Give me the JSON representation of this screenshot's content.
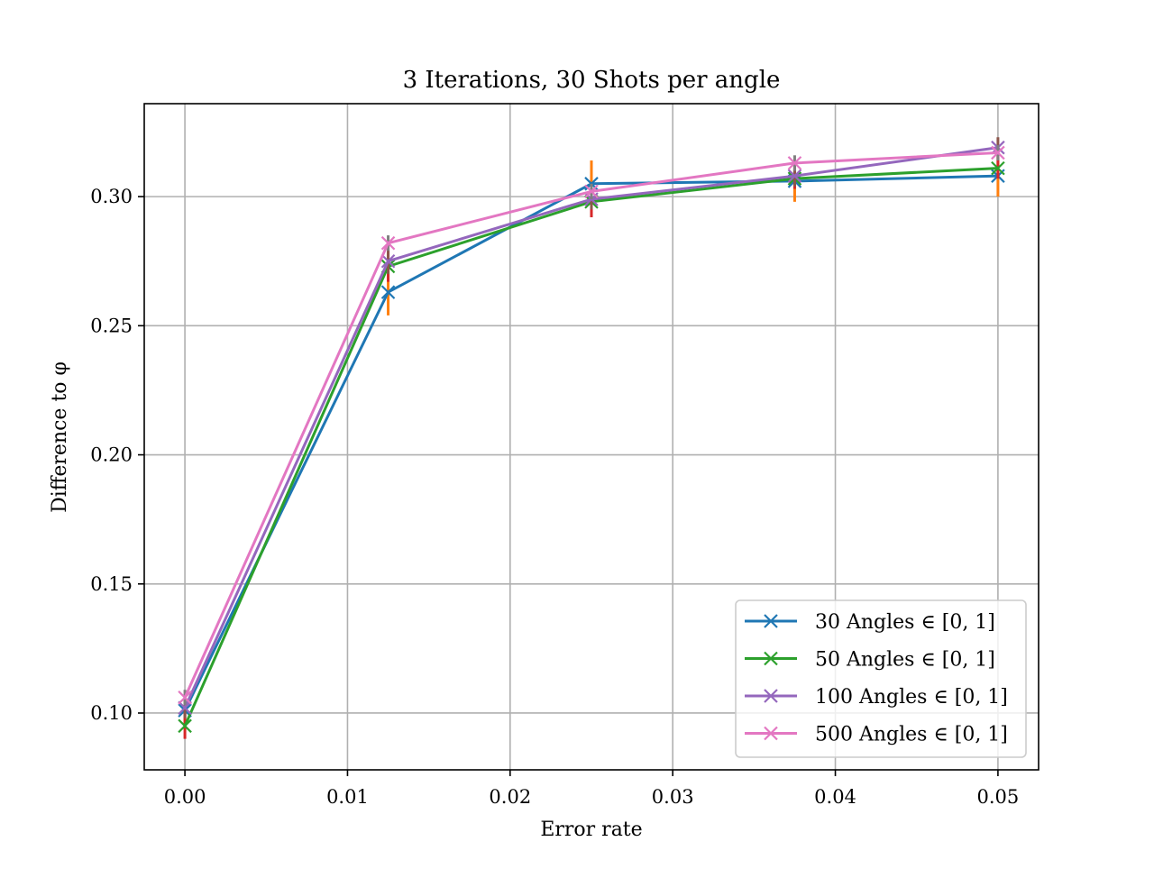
{
  "chart_data": {
    "type": "line",
    "title": "3 Iterations, 30 Shots per angle",
    "xlabel": "Error rate",
    "ylabel": "Difference to φ",
    "x": [
      0.0,
      0.0125,
      0.025,
      0.0375,
      0.05
    ],
    "xlim": [
      -0.0025,
      0.0525
    ],
    "ylim": [
      0.078,
      0.336
    ],
    "xticks": [
      0.0,
      0.01,
      0.02,
      0.03,
      0.04,
      0.05
    ],
    "xtick_labels": [
      "0.00",
      "0.01",
      "0.02",
      "0.03",
      "0.04",
      "0.05"
    ],
    "yticks": [
      0.1,
      0.15,
      0.2,
      0.25,
      0.3
    ],
    "ytick_labels": [
      "0.10",
      "0.15",
      "0.20",
      "0.25",
      "0.30"
    ],
    "grid": true,
    "legend_position": "lower-right",
    "marker": "x",
    "series": [
      {
        "name": "30 Angles ∈ [0, 1]",
        "color": "#1f77b4",
        "errbar_color": "#ff7f0e",
        "values": [
          0.101,
          0.263,
          0.305,
          0.306,
          0.308
        ],
        "errors": [
          0.006,
          0.009,
          0.009,
          0.008,
          0.008
        ]
      },
      {
        "name": "50 Angles ∈ [0, 1]",
        "color": "#2ca02c",
        "errbar_color": "#d62728",
        "values": [
          0.095,
          0.273,
          0.298,
          0.307,
          0.311
        ],
        "errors": [
          0.005,
          0.006,
          0.006,
          0.004,
          0.004
        ]
      },
      {
        "name": "100 Angles ∈ [0, 1]",
        "color": "#9467bd",
        "errbar_color": "#8c564b",
        "values": [
          0.102,
          0.275,
          0.299,
          0.308,
          0.319
        ],
        "errors": [
          0.004,
          0.005,
          0.004,
          0.004,
          0.004
        ]
      },
      {
        "name": "500 Angles ∈ [0, 1]",
        "color": "#e377c2",
        "errbar_color": "#7f7f7f",
        "values": [
          0.106,
          0.282,
          0.302,
          0.313,
          0.317
        ],
        "errors": [
          0.003,
          0.003,
          0.003,
          0.003,
          0.003
        ]
      }
    ]
  }
}
